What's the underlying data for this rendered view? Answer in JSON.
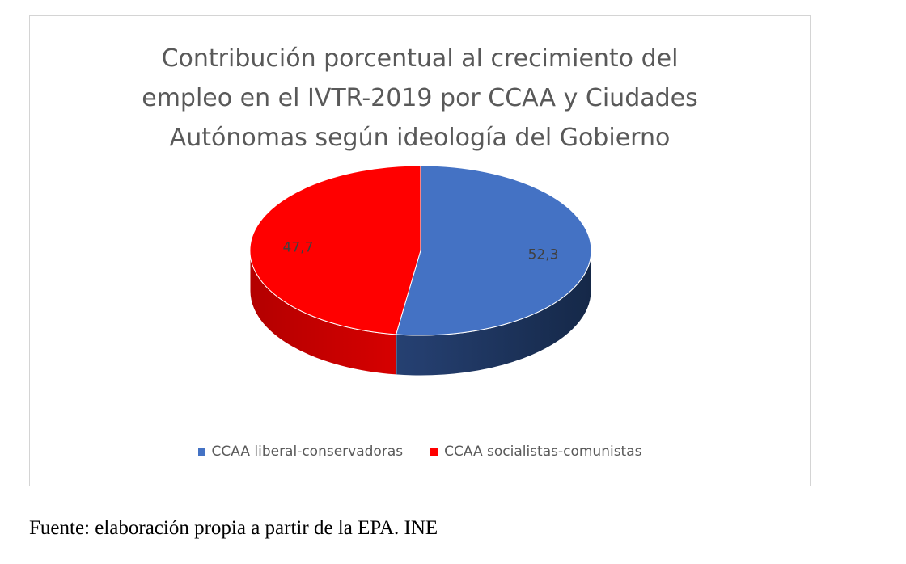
{
  "chart_data": {
    "type": "pie",
    "title_lines": [
      "Contribución porcentual al crecimiento del",
      "empleo en el IVTR-2019 por CCAA y Ciudades",
      "Autónomas según ideología del Gobierno"
    ],
    "style": "3d",
    "legend_position": "bottom",
    "slices": [
      {
        "label": "CCAA liberal-conservadoras",
        "value": 52.3,
        "data_label": "52,3",
        "color": "#4472c4"
      },
      {
        "label": "CCAA socialistas-comunistas",
        "value": 47.7,
        "data_label": "47,7",
        "color": "#ff0000"
      }
    ]
  },
  "source_note": "Fuente: elaboración propia a partir de la EPA. INE"
}
